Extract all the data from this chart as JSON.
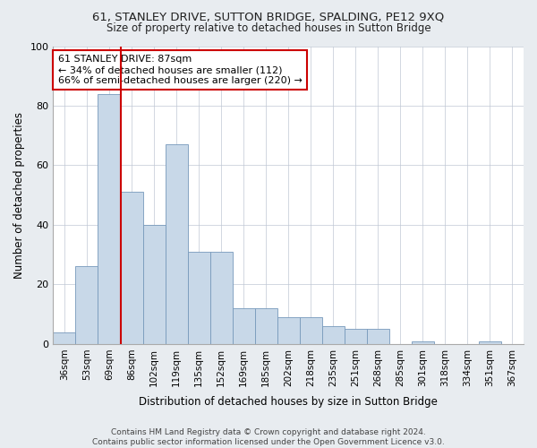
{
  "title1": "61, STANLEY DRIVE, SUTTON BRIDGE, SPALDING, PE12 9XQ",
  "title2": "Size of property relative to detached houses in Sutton Bridge",
  "xlabel": "Distribution of detached houses by size in Sutton Bridge",
  "ylabel": "Number of detached properties",
  "footer1": "Contains HM Land Registry data © Crown copyright and database right 2024.",
  "footer2": "Contains public sector information licensed under the Open Government Licence v3.0.",
  "annotation_line1": "61 STANLEY DRIVE: 87sqm",
  "annotation_line2": "← 34% of detached houses are smaller (112)",
  "annotation_line3": "66% of semi-detached houses are larger (220) →",
  "bar_labels": [
    "36sqm",
    "53sqm",
    "69sqm",
    "86sqm",
    "102sqm",
    "119sqm",
    "135sqm",
    "152sqm",
    "169sqm",
    "185sqm",
    "202sqm",
    "218sqm",
    "235sqm",
    "251sqm",
    "268sqm",
    "285sqm",
    "301sqm",
    "318sqm",
    "334sqm",
    "351sqm",
    "367sqm"
  ],
  "bar_values": [
    4,
    26,
    84,
    51,
    40,
    67,
    31,
    31,
    12,
    12,
    9,
    9,
    6,
    5,
    5,
    0,
    1,
    0,
    0,
    1,
    0
  ],
  "bar_color": "#c8d8e8",
  "bar_edgecolor": "#7799bb",
  "vline_color": "#cc0000",
  "vline_x": 2.5,
  "ylim": [
    0,
    100
  ],
  "yticks": [
    0,
    20,
    40,
    60,
    80,
    100
  ],
  "bg_color": "#e8ecf0",
  "plot_bg_color": "#ffffff",
  "grid_color": "#c0c8d4"
}
